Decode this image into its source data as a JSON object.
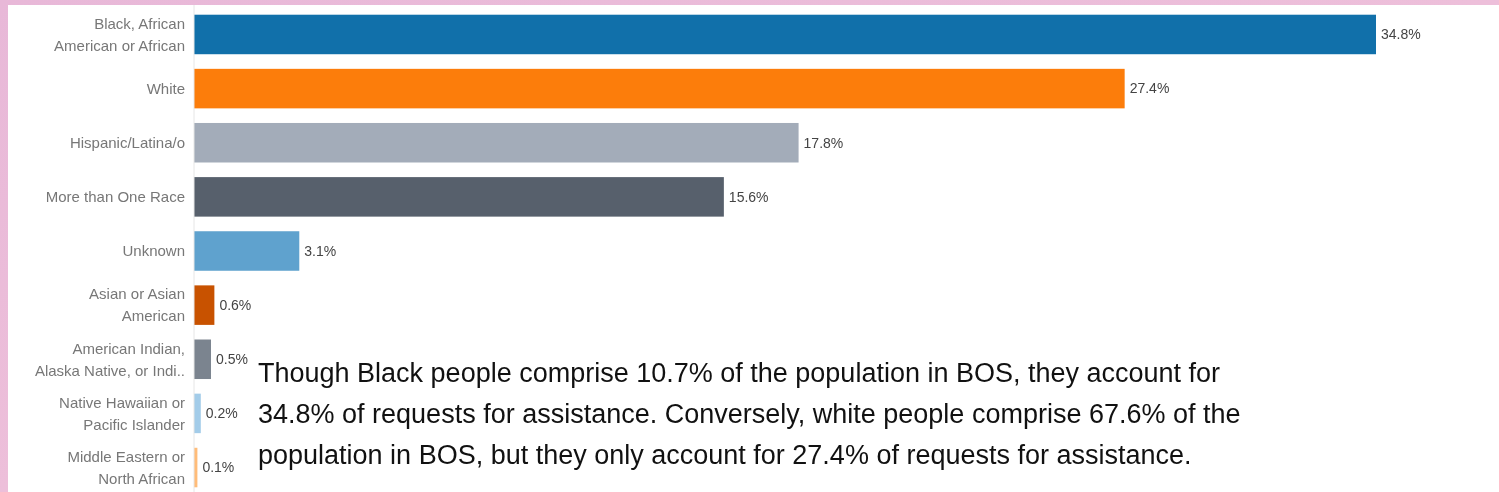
{
  "chart_data": {
    "type": "bar",
    "orientation": "horizontal",
    "value_labels": [
      "34.8%",
      "27.4%",
      "17.8%",
      "15.6%",
      "3.1%",
      "0.6%",
      "0.5%",
      "0.2%",
      "0.1%"
    ],
    "categories": [
      "Black, African American or African",
      "White",
      "Hispanic/Latina/o",
      "More than One Race",
      "Unknown",
      "Asian or Asian American",
      "American Indian, Alaska Native, or Indi..",
      "Native Hawaiian or Pacific Islander",
      "Middle Eastern or North African"
    ],
    "values": [
      34.8,
      27.4,
      17.8,
      15.6,
      3.1,
      0.6,
      0.5,
      0.2,
      0.1
    ],
    "colors": [
      "#1170aa",
      "#fc7d0b",
      "#a3acb9",
      "#57606c",
      "#5fa2ce",
      "#c85200",
      "#7b848f",
      "#a3cce9",
      "#ffbc79"
    ],
    "annotations": [
      "Though Black people comprise 10.7% of the population in BOS, they account for 34.8% of requests for assistance. Conversely, white people comprise 67.6% of the population in BOS, but they only account for 27.4% of requests for assistance."
    ]
  }
}
